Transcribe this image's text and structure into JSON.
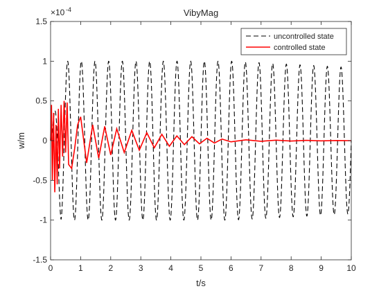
{
  "chart_data": {
    "type": "line",
    "title": "VibyMag",
    "xlabel": "t/s",
    "ylabel": "w/m",
    "y_exponent_label": "×10",
    "y_exponent_power": "-4",
    "xlim": [
      0,
      10
    ],
    "ylim": [
      -1.5,
      1.5
    ],
    "y_multiplier": 0.0001,
    "x_ticks": [
      0,
      1,
      2,
      3,
      4,
      5,
      6,
      7,
      8,
      9,
      10
    ],
    "x_tick_labels": [
      "0",
      "1",
      "2",
      "3",
      "4",
      "5",
      "6",
      "7",
      "8",
      "9",
      "10"
    ],
    "y_ticks": [
      -1.5,
      -1,
      -0.5,
      0,
      0.5,
      1,
      1.5
    ],
    "y_tick_labels": [
      "-1.5",
      "-1",
      "-0.5",
      "0",
      "0.5",
      "1",
      "1.5"
    ],
    "grid": false,
    "legend_position": "top-right",
    "series": [
      {
        "name": "uncontrolled state",
        "color": "#000000",
        "dash": "dashed",
        "description": "sustained oscillation, amplitude about 1.0e-4, about 2.2 cycles per second",
        "amplitude": 1.0,
        "frequency_hz": 2.2,
        "x": [
          0,
          0.12,
          0.33,
          0.57,
          0.8,
          1.02,
          1.25,
          1.48,
          1.7,
          1.93,
          2.16,
          2.39,
          2.61,
          2.84,
          3.07,
          3.3,
          3.52,
          3.75,
          3.98,
          4.2,
          4.43,
          4.66,
          4.89,
          5.11,
          5.34,
          5.57,
          5.8,
          6.02,
          6.25,
          6.48,
          6.7,
          6.93,
          7.16,
          7.39,
          7.61,
          7.84,
          8.07,
          8.3,
          8.52,
          8.75,
          8.98,
          9.2,
          9.43,
          9.66,
          9.89,
          10.0
        ],
        "y": [
          0,
          0.95,
          -0.95,
          1.0,
          -1.0,
          1.0,
          -1.0,
          1.0,
          -1.0,
          1.0,
          -1.0,
          1.0,
          -1.0,
          1.0,
          -1.0,
          1.0,
          -1.0,
          1.0,
          -1.0,
          1.0,
          -1.0,
          1.0,
          -1.0,
          1.0,
          -1.0,
          1.0,
          -1.0,
          1.0,
          -1.0,
          1.0,
          -1.0,
          1.0,
          -0.95,
          0.95,
          -0.95,
          0.9,
          -0.95,
          0.9,
          -0.9,
          0.9,
          -0.9,
          0.9,
          -0.9,
          0.9,
          -0.8,
          0.5
        ]
      },
      {
        "name": "controlled state",
        "color": "#ff0000",
        "dash": "solid",
        "description": "oscillation decaying from about 0.5e-4 to near zero by t≈6 s",
        "x": [
          0,
          0.03,
          0.06,
          0.1,
          0.14,
          0.18,
          0.22,
          0.26,
          0.3,
          0.35,
          0.4,
          0.45,
          0.5,
          0.55,
          0.6,
          0.7,
          0.8,
          0.9,
          1.0,
          1.2,
          1.4,
          1.6,
          1.8,
          2.0,
          2.2,
          2.45,
          2.7,
          2.95,
          3.2,
          3.45,
          3.7,
          3.95,
          4.2,
          4.45,
          4.7,
          4.95,
          5.2,
          5.45,
          5.7,
          6.0,
          6.5,
          7.0,
          7.5,
          8.0,
          8.5,
          9.0,
          9.5,
          10.0
        ],
        "y": [
          0,
          0.45,
          -0.5,
          0.35,
          -0.65,
          0.2,
          -0.55,
          0.4,
          -0.35,
          0.45,
          -0.2,
          0.5,
          -0.15,
          0.48,
          -0.3,
          -0.35,
          -0.1,
          0.2,
          0.3,
          -0.28,
          0.2,
          -0.22,
          0.18,
          -0.18,
          0.15,
          -0.15,
          0.13,
          -0.12,
          0.1,
          -0.09,
          0.08,
          -0.07,
          0.06,
          -0.05,
          0.05,
          -0.04,
          0.03,
          -0.03,
          0.02,
          -0.015,
          0.01,
          -0.008,
          0.006,
          -0.005,
          0.004,
          -0.003,
          0.002,
          0
        ]
      }
    ]
  }
}
